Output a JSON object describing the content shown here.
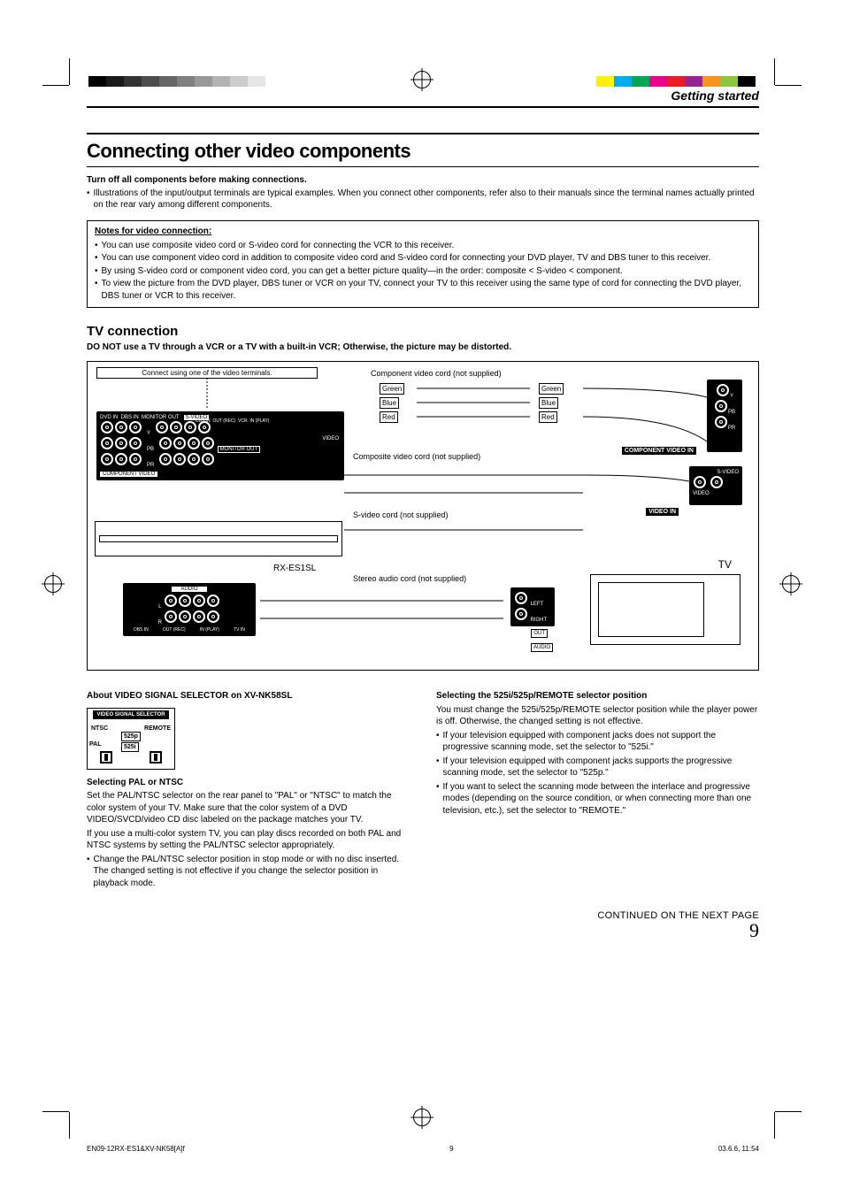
{
  "section_header": "Getting started",
  "h1": "Connecting other video components",
  "intro_bold": "Turn off all components before making connections.",
  "intro_bullet": "Illustrations of the input/output terminals are typical examples. When you connect other components, refer also to their manuals since the terminal names actually printed on the rear vary among different components.",
  "notes": {
    "title": "Notes for video connection:",
    "items": [
      "You can use composite video cord or S-video cord for connecting the VCR to this receiver.",
      "You can use component video cord in addition to composite video cord and S-video cord for connecting your DVD player, TV and DBS tuner to this receiver.",
      "By using S-video cord or component video cord, you can get a better picture quality—in the order: composite < S-video < component.",
      "To view the picture from the DVD player, DBS tuner or VCR on your TV, connect your TV to this receiver using the same type of cord for connecting the DVD player, DBS tuner or VCR to this receiver."
    ]
  },
  "h2": "TV connection",
  "warn": "DO NOT use a TV through a VCR or a TV with a built-in VCR; Otherwise, the picture may be distorted.",
  "diagram": {
    "connect_hint": "Connect using one of the video terminals.",
    "component_cord": "Component video cord (not supplied)",
    "composite_cord": "Composite video cord (not supplied)",
    "svideo_cord": "S-video cord (not supplied)",
    "stereo_cord": "Stereo audio cord (not supplied)",
    "model": "RX-ES1SL",
    "tv_label": "TV",
    "colors": {
      "green": "Green",
      "blue": "Blue",
      "red": "Red"
    },
    "panel_labels": {
      "component_video": "COMPONENT VIDEO",
      "component_video_in": "COMPONENT VIDEO IN",
      "video_in": "VIDEO IN",
      "monitor_out": "MONITOR OUT",
      "audio": "AUDIO",
      "svideo": "S-VIDEO",
      "video": "VIDEO",
      "left": "LEFT",
      "right": "RIGHT",
      "out_label": "OUT",
      "y": "Y",
      "pb": "PB",
      "pr": "PR",
      "dvd_in": "DVD IN",
      "dbs_in": "DBS IN",
      "dbs_in2": "DBS IN",
      "out_rec": "OUT (REC)",
      "vcr": "VCR",
      "in_play": "IN (PLAY)",
      "tv_in": "TV IN"
    }
  },
  "left_col": {
    "about": "About VIDEO SIGNAL SELECTOR on XV-NK58SL",
    "selector_labels": {
      "title": "VIDEO  SIGNAL SELECTOR",
      "ntsc": "NTSC",
      "remote": "REMOTE",
      "pal": "PAL",
      "p525p": "525p",
      "p525i": "525i"
    },
    "sel_pal_head": "Selecting PAL or NTSC",
    "sel_pal_body1": "Set the PAL/NTSC selector on the rear panel to \"PAL\" or \"NTSC\" to match the color system of your TV. Make sure that the color system of a DVD VIDEO/SVCD/video CD disc labeled on the package matches your TV.",
    "sel_pal_body2": "If you use a multi-color system TV, you can play discs recorded on both PAL and NTSC systems by setting the PAL/NTSC selector appropriately.",
    "sel_pal_bullet": "Change the PAL/NTSC selector position in stop mode or with no disc inserted. The changed setting is not effective if you change the selector position in playback mode."
  },
  "right_col": {
    "head": "Selecting the 525i/525p/REMOTE selector position",
    "body": "You must change the 525i/525p/REMOTE selector position while the player power is off. Otherwise, the changed setting is not effective.",
    "bullets": [
      "If your television equipped with component jacks does not support the progressive scanning mode, set the selector to \"525i.\"",
      "If your television equipped with component jacks supports the progressive scanning mode, set the selector to \"525p.\"",
      "If you want to select the scanning mode between the interlace and progressive modes (depending on the source condition, or when connecting more than one television, etc.), set the selector to \"REMOTE.\""
    ]
  },
  "continued": "CONTINUED ON THE NEXT PAGE",
  "pagenum": "9",
  "footer": {
    "file": "EN09-12RX-ES1&XV-NK58[A]f",
    "page": "9",
    "date": "03.6.6, 11:54"
  },
  "print_marks": {
    "gray_shades": [
      "#000000",
      "#1a1a1a",
      "#333333",
      "#4d4d4d",
      "#666666",
      "#808080",
      "#999999",
      "#b3b3b3",
      "#cccccc",
      "#e6e6e6"
    ],
    "cmyk_colors": [
      "#00aeef",
      "#ec008c",
      "#fff200",
      "#000000",
      "#ed1c24",
      "#00a651",
      "#2e3192",
      "#92278f",
      "#f7941d",
      "#8dc63f"
    ],
    "right_colors": [
      "#fff200",
      "#00aeef",
      "#00a651",
      "#ec008c",
      "#ed1c24",
      "#92278f",
      "#f7941d",
      "#8dc63f",
      "#000000"
    ]
  }
}
